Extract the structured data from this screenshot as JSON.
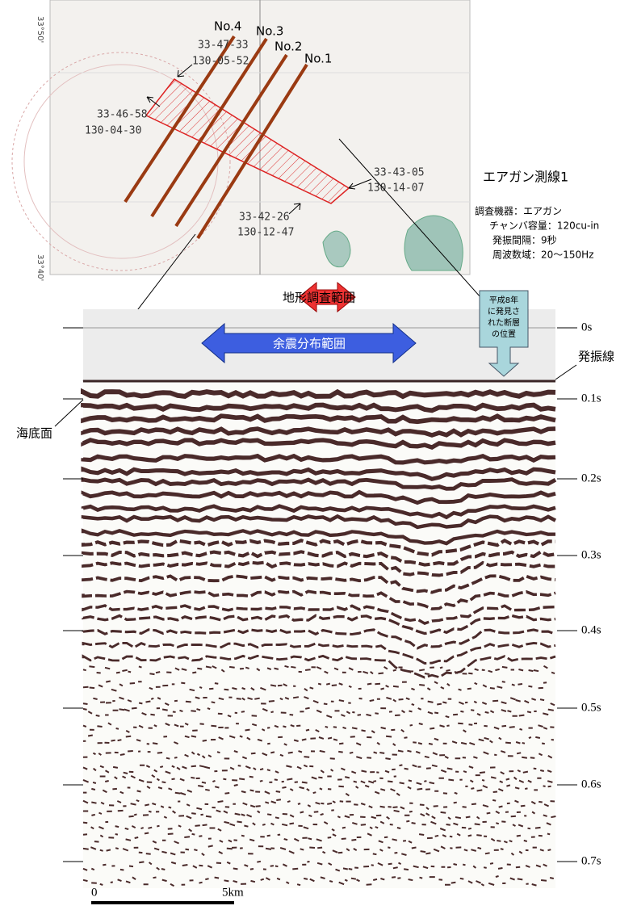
{
  "map": {
    "lat_top": "33°50'",
    "lat_bottom": "33°40'",
    "lines": [
      "No.4",
      "No.3",
      "No.2",
      "No.1"
    ],
    "corners": [
      {
        "lat": "33-47-33",
        "lon": "130-05-52"
      },
      {
        "lat": "33-46-58",
        "lon": "130-04-30"
      },
      {
        "lat": "33-43-05",
        "lon": "130-14-07"
      },
      {
        "lat": "33-42-26",
        "lon": "130-12-47"
      }
    ]
  },
  "legend": {
    "title": "エアガン測線1",
    "items": [
      "調査機器：エアガン",
      "チャンバ容量：120cu-in",
      "発振間隔：9秒",
      "周波数域：20～150Hz"
    ]
  },
  "profile": {
    "range_topography": "地形調査範囲",
    "range_aftershock": "余震分布範囲",
    "fault_note": [
      "平成8年",
      "に発見さ",
      "れた断層",
      "の位置"
    ],
    "shot_line": "発振線",
    "seabed": "海底面",
    "time_labels": [
      "0s",
      "0.1s",
      "0.2s",
      "0.3s",
      "0.4s",
      "0.5s",
      "0.6s",
      "0.7s"
    ],
    "scale": [
      "0",
      "5km"
    ]
  }
}
